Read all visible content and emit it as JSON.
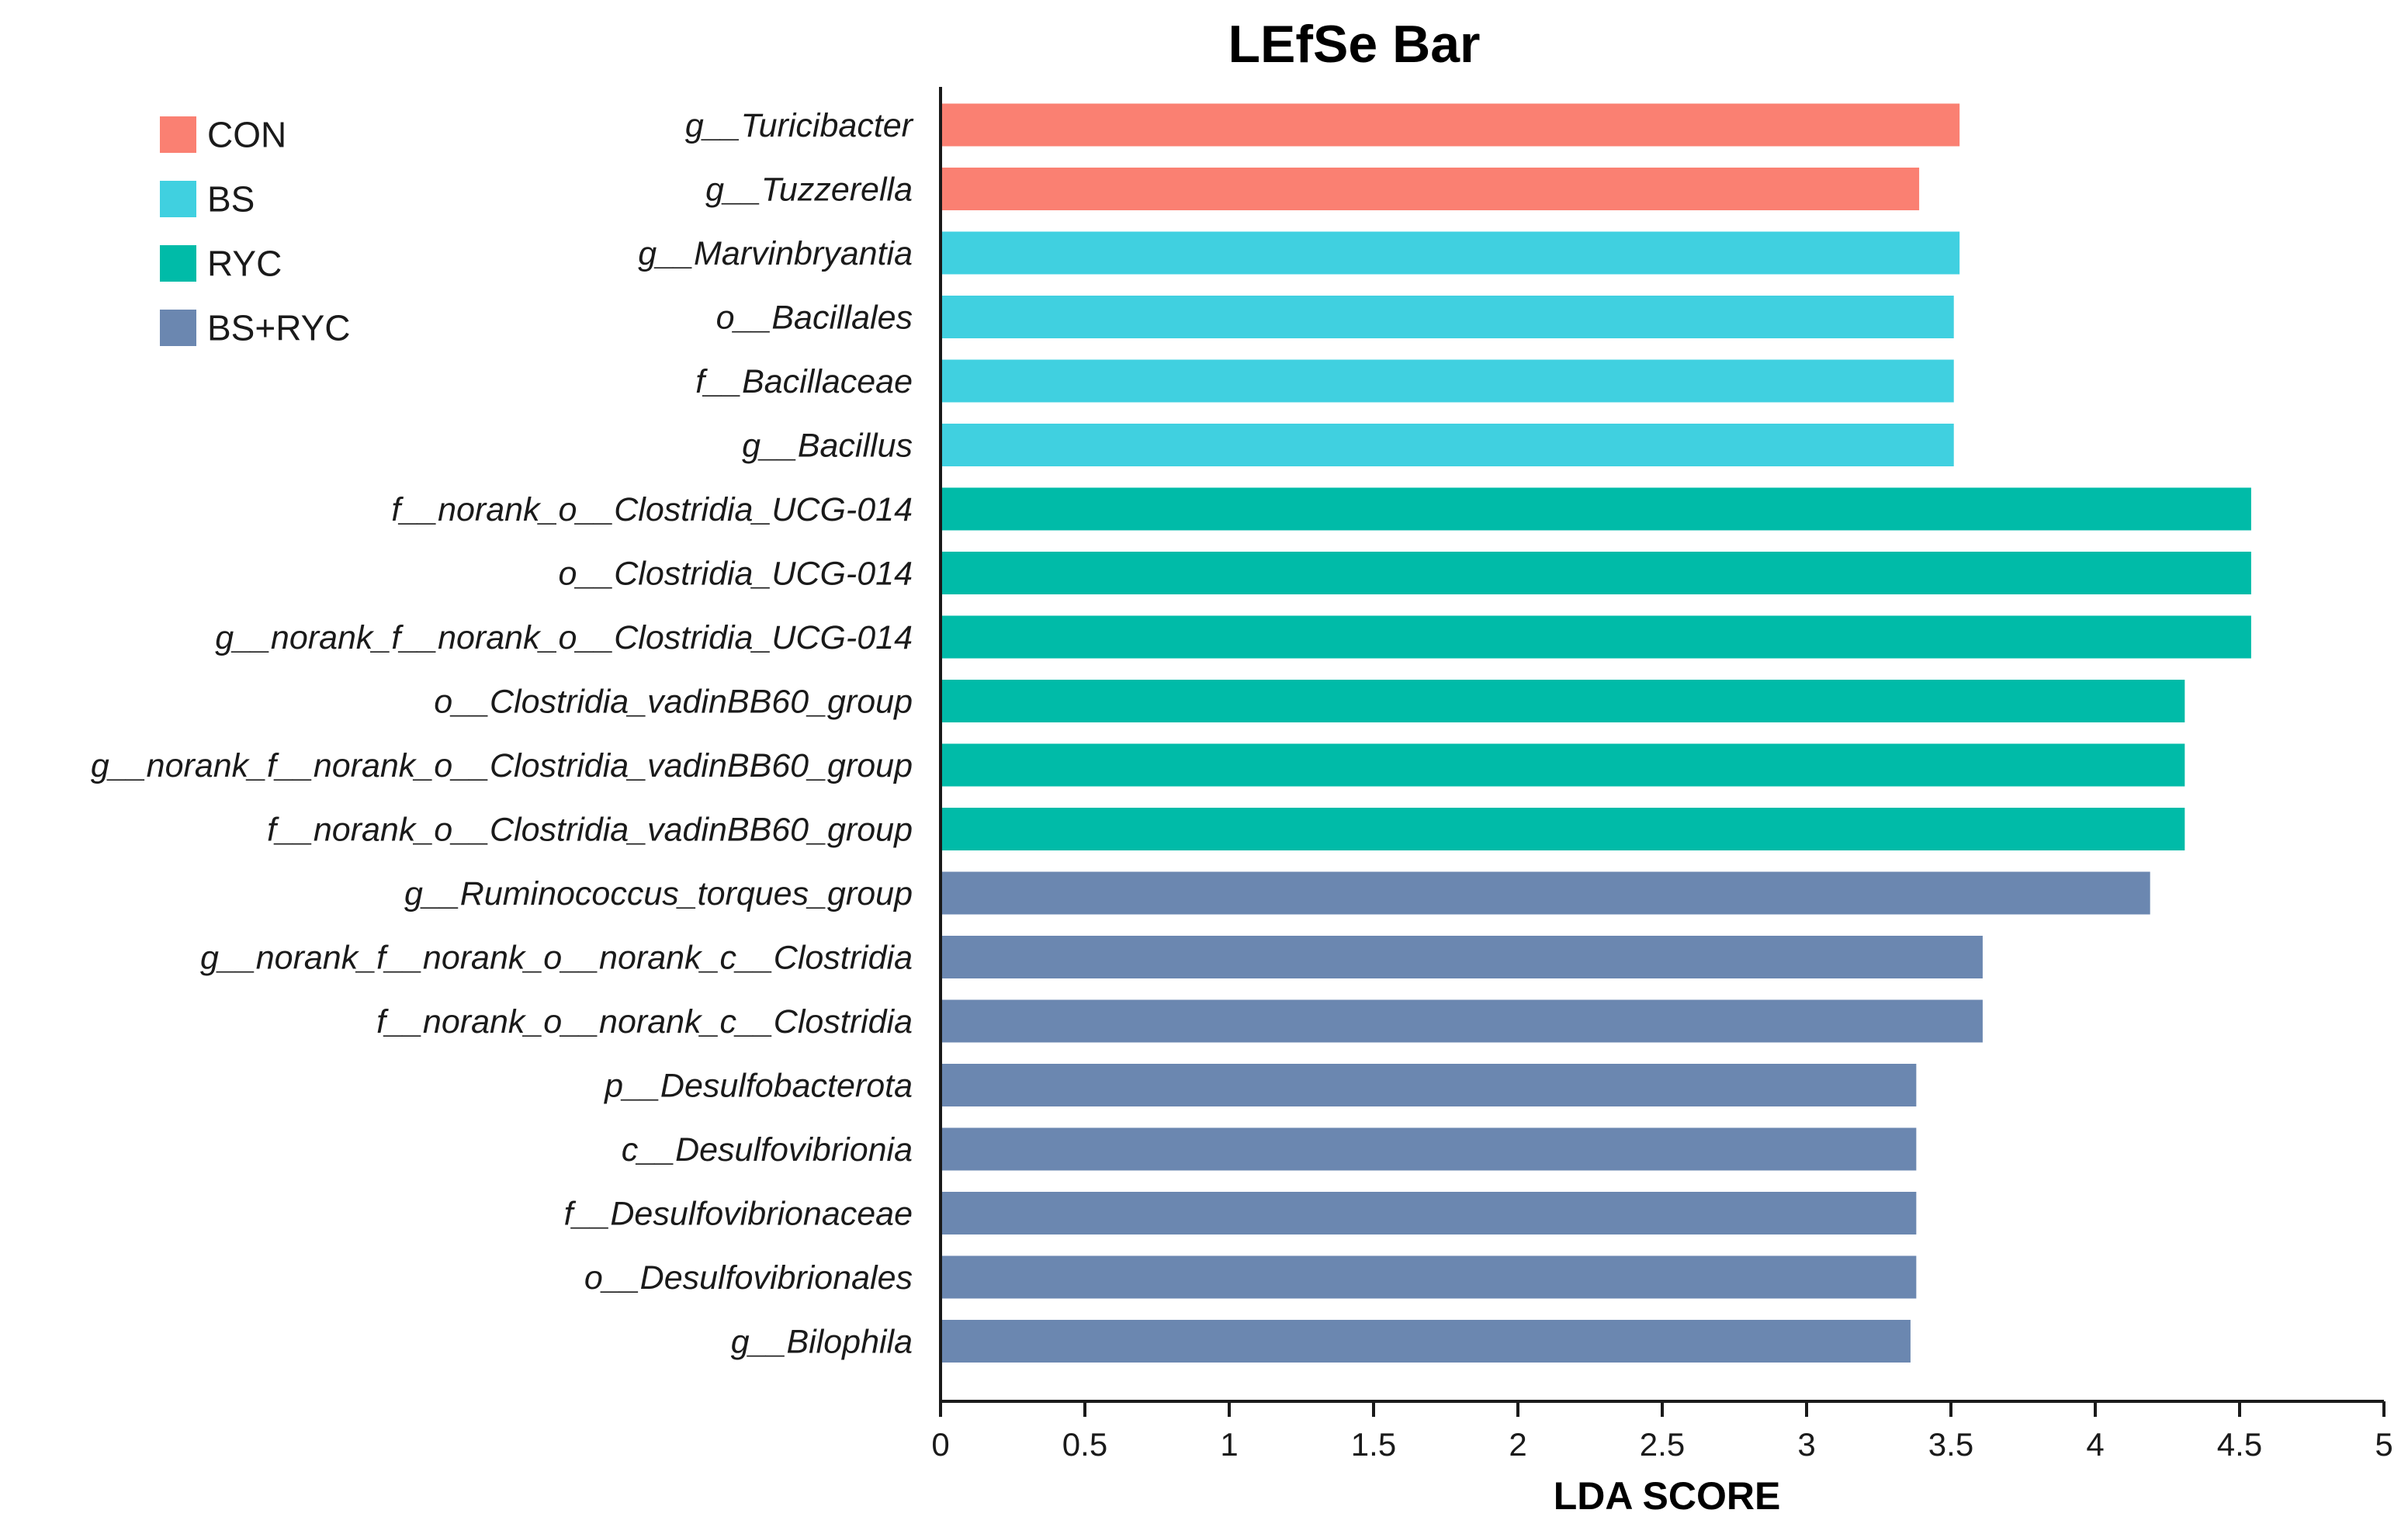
{
  "chart_data": {
    "type": "bar",
    "orientation": "horizontal",
    "title": "LEfSe Bar",
    "xlabel": "LDA SCORE",
    "ylabel": "",
    "xlim": [
      0,
      5
    ],
    "xticks": [
      0,
      0.5,
      1,
      1.5,
      2,
      2.5,
      3,
      3.5,
      4,
      4.5,
      5
    ],
    "xtick_labels": [
      "0",
      "0.5",
      "1",
      "1.5",
      "2",
      "2.5",
      "3",
      "3.5",
      "4",
      "4.5",
      "5"
    ],
    "grid": false,
    "legend_position": "top-left",
    "groups": [
      {
        "name": "CON",
        "color": "#FA8072"
      },
      {
        "name": "BS",
        "color": "#40D0E0"
      },
      {
        "name": "RYC",
        "color": "#00BBA8"
      },
      {
        "name": "BS+RYC",
        "color": "#6B87B0"
      }
    ],
    "categories": [
      "g__Turicibacter",
      "g__Tuzzerella",
      "g__Marvinbryantia",
      "o__Bacillales",
      "f__Bacillaceae",
      "g__Bacillus",
      "f__norank_o__Clostridia_UCG-014",
      "o__Clostridia_UCG-014",
      "g__norank_f__norank_o__Clostridia_UCG-014",
      "o__Clostridia_vadinBB60_group",
      "g__norank_f__norank_o__Clostridia_vadinBB60_group",
      "f__norank_o__Clostridia_vadinBB60_group",
      "g__Ruminococcus_torques_group",
      "g__norank_f__norank_o__norank_c__Clostridia",
      "f__norank_o__norank_c__Clostridia",
      "p__Desulfobacterota",
      "c__Desulfovibrionia",
      "f__Desulfovibrionaceae",
      "o__Desulfovibrionales",
      "g__Bilophila"
    ],
    "values": [
      3.53,
      3.39,
      3.53,
      3.51,
      3.51,
      3.51,
      4.54,
      4.54,
      4.54,
      4.31,
      4.31,
      4.31,
      4.19,
      3.61,
      3.61,
      3.38,
      3.38,
      3.38,
      3.38,
      3.36
    ],
    "bar_groups": [
      "CON",
      "CON",
      "BS",
      "BS",
      "BS",
      "BS",
      "RYC",
      "RYC",
      "RYC",
      "RYC",
      "RYC",
      "RYC",
      "BS+RYC",
      "BS+RYC",
      "BS+RYC",
      "BS+RYC",
      "BS+RYC",
      "BS+RYC",
      "BS+RYC",
      "BS+RYC"
    ]
  }
}
